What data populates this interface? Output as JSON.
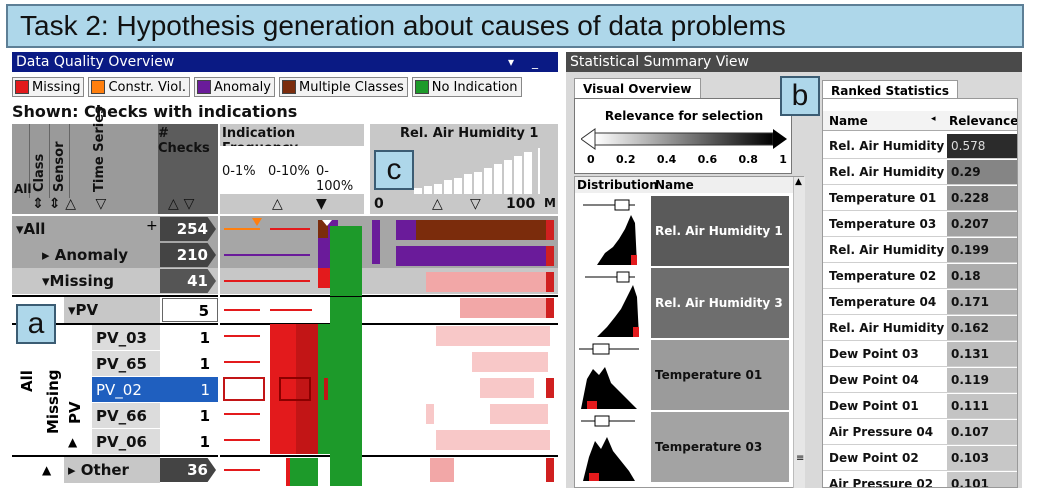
{
  "title": "Task 2: Hypothesis generation about causes of data problems",
  "left_panel": {
    "header": "Data Quality Overview",
    "header_controls": [
      "▾",
      "_"
    ],
    "legend": [
      {
        "label": "Missing",
        "color": "#e31a1c"
      },
      {
        "label": "Constr. Viol.",
        "color": "#ff7f0e"
      },
      {
        "label": "Anomaly",
        "color": "#6a1b9a"
      },
      {
        "label": "Multiple Classes",
        "color": "#7b2c0c"
      },
      {
        "label": "No Indication",
        "color": "#1d9a2a"
      }
    ],
    "shown_text": "Shown: Checks with indications",
    "col_headers": {
      "all": "All",
      "class": "Class",
      "sensor": "Sensor",
      "time_series": "Time Series",
      "checks": "# Checks",
      "indication_frequency": "Indication Frequency",
      "freq_bins": [
        "0-1%",
        "0-10%",
        "0-100%"
      ],
      "rel_air": "Rel. Air Humidity 1",
      "axis_min": "0",
      "axis_max": "100",
      "axis_m": "M"
    },
    "rows": [
      {
        "label": "All",
        "count": "254"
      },
      {
        "label": "Anomaly",
        "count": "210"
      },
      {
        "label": "Missing",
        "count": "41"
      },
      {
        "label": "PV",
        "count": "5"
      },
      {
        "label": "PV_03",
        "count": "1"
      },
      {
        "label": "PV_65",
        "count": "1"
      },
      {
        "label": "PV_02",
        "count": "1"
      },
      {
        "label": "PV_66",
        "count": "1"
      },
      {
        "label": "PV_06",
        "count": "1"
      },
      {
        "label": "Other",
        "count": "36"
      }
    ],
    "group_labels": {
      "all": "All",
      "missing": "Missing",
      "pv": "PV"
    }
  },
  "badges": {
    "a": "a",
    "b": "b",
    "c": "c"
  },
  "right_panel": {
    "header": "Statistical Summary View",
    "tab_visual": "Visual Overview",
    "tab_ranked": "Ranked Statistics",
    "relevance_title": "Relevance for selection",
    "relevance_ticks": [
      "0",
      "0.2",
      "0.4",
      "0.6",
      "0.8",
      "1"
    ],
    "dist_headers": {
      "distribution": "Distribution",
      "name": "Name"
    },
    "dist_rows": [
      {
        "name": "Rel. Air Humidity 1",
        "shade": "#5a5a5a"
      },
      {
        "name": "Rel. Air Humidity 3",
        "shade": "#6e6e6e"
      },
      {
        "name": "Temperature 01",
        "shade": "#9b9b9b"
      },
      {
        "name": "Temperature 03",
        "shade": "#a3a3a3"
      }
    ],
    "ranked_headers": {
      "name": "Name",
      "relevance": "Relevance"
    },
    "ranked": [
      {
        "name": "Rel. Air Humidity 1",
        "value": "0.578",
        "shade": "#2b2b2b"
      },
      {
        "name": "Rel. Air Humidity 3",
        "value": "0.29",
        "shade": "#858585"
      },
      {
        "name": "Temperature 01",
        "value": "0.228",
        "shade": "#9c9c9c"
      },
      {
        "name": "Temperature 03",
        "value": "0.207",
        "shade": "#a3a3a3"
      },
      {
        "name": "Rel. Air Humidity 4",
        "value": "0.199",
        "shade": "#a6a6a6"
      },
      {
        "name": "Temperature 02",
        "value": "0.18",
        "shade": "#adadad"
      },
      {
        "name": "Temperature 04",
        "value": "0.171",
        "shade": "#b0b0b0"
      },
      {
        "name": "Rel. Air Humidity 2",
        "value": "0.162",
        "shade": "#b3b3b3"
      },
      {
        "name": "Dew Point 03",
        "value": "0.131",
        "shade": "#bdbdbd"
      },
      {
        "name": "Dew Point 04",
        "value": "0.119",
        "shade": "#c1c1c1"
      },
      {
        "name": "Dew Point 01",
        "value": "0.111",
        "shade": "#c4c4c4"
      },
      {
        "name": "Air Pressure 04",
        "value": "0.107",
        "shade": "#c6c6c6"
      },
      {
        "name": "Dew Point 02",
        "value": "0.103",
        "shade": "#c7c7c7"
      },
      {
        "name": "Air Pressure 02",
        "value": "0.101",
        "shade": "#c8c8c8"
      }
    ]
  }
}
